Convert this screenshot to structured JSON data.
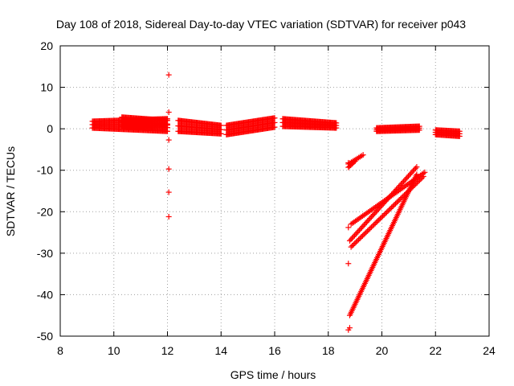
{
  "chart_data": {
    "type": "scatter",
    "title": "Day 108 of 2018, Sidereal Day-to-day VTEC variation (SDTVAR) for receiver p043",
    "xlabel": "GPS time / hours",
    "ylabel": "SDTVAR / TECUs",
    "xlim": [
      8,
      24
    ],
    "ylim": [
      -50,
      20
    ],
    "xticks": [
      "8",
      "10",
      "12",
      "14",
      "16",
      "18",
      "20",
      "22",
      "24"
    ],
    "yticks": [
      "20",
      "10",
      "0",
      "-10",
      "-20",
      "-30",
      "-40",
      "-50"
    ],
    "grid": true,
    "legend": "none",
    "marker": "plus",
    "color": "#ff0000",
    "series": [
      {
        "points": [
          [
            12.05,
            13
          ],
          [
            12.05,
            4
          ],
          [
            12.05,
            -2.7
          ],
          [
            12.05,
            -9.7
          ],
          [
            12.05,
            -15.3
          ],
          [
            12.05,
            -21.2
          ],
          [
            18.75,
            -8.2
          ],
          [
            18.75,
            -23.8
          ],
          [
            18.75,
            -32.5
          ],
          [
            18.75,
            -48.5
          ],
          [
            18.8,
            -48
          ]
        ]
      }
    ],
    "bands": [
      {
        "x_start": 9.2,
        "x_end": 12.0,
        "y_low": [
          0.2,
          -0.6
        ],
        "y_high": [
          1.8,
          2.4
        ]
      },
      {
        "x_start": 10.3,
        "x_end": 12.0,
        "y_low": [
          0.6,
          0.3
        ],
        "y_high": [
          2.8,
          2.0
        ]
      },
      {
        "x_start": 12.4,
        "x_end": 14.0,
        "y_low": [
          -0.6,
          -1.2
        ],
        "y_high": [
          2.0,
          0.8
        ]
      },
      {
        "x_start": 14.2,
        "x_end": 16.0,
        "y_low": [
          -1.4,
          0.4
        ],
        "y_high": [
          0.8,
          2.6
        ]
      },
      {
        "x_start": 16.3,
        "x_end": 18.3,
        "y_low": [
          0.6,
          0.2
        ],
        "y_high": [
          2.4,
          1.4
        ]
      },
      {
        "x_start": 19.8,
        "x_end": 21.4,
        "y_low": [
          -0.6,
          -0.3
        ],
        "y_high": [
          0.2,
          0.6
        ]
      },
      {
        "x_start": 22.0,
        "x_end": 22.9,
        "y_low": [
          -1.4,
          -1.8
        ],
        "y_high": [
          -0.3,
          -0.6
        ]
      }
    ],
    "tracks": [
      {
        "from": [
          18.75,
          -8.5
        ],
        "to": [
          19.3,
          -6.3
        ]
      },
      {
        "from": [
          18.75,
          -9.3
        ],
        "to": [
          19.0,
          -7.8
        ]
      },
      {
        "from": [
          18.85,
          -23.0
        ],
        "to": [
          21.6,
          -10.5
        ]
      },
      {
        "from": [
          18.8,
          -27.0
        ],
        "to": [
          21.3,
          -9.2
        ]
      },
      {
        "from": [
          18.85,
          -28.5
        ],
        "to": [
          21.55,
          -11.5
        ]
      },
      {
        "from": [
          18.8,
          -45.0
        ],
        "to": [
          21.3,
          -11.0
        ]
      }
    ]
  }
}
